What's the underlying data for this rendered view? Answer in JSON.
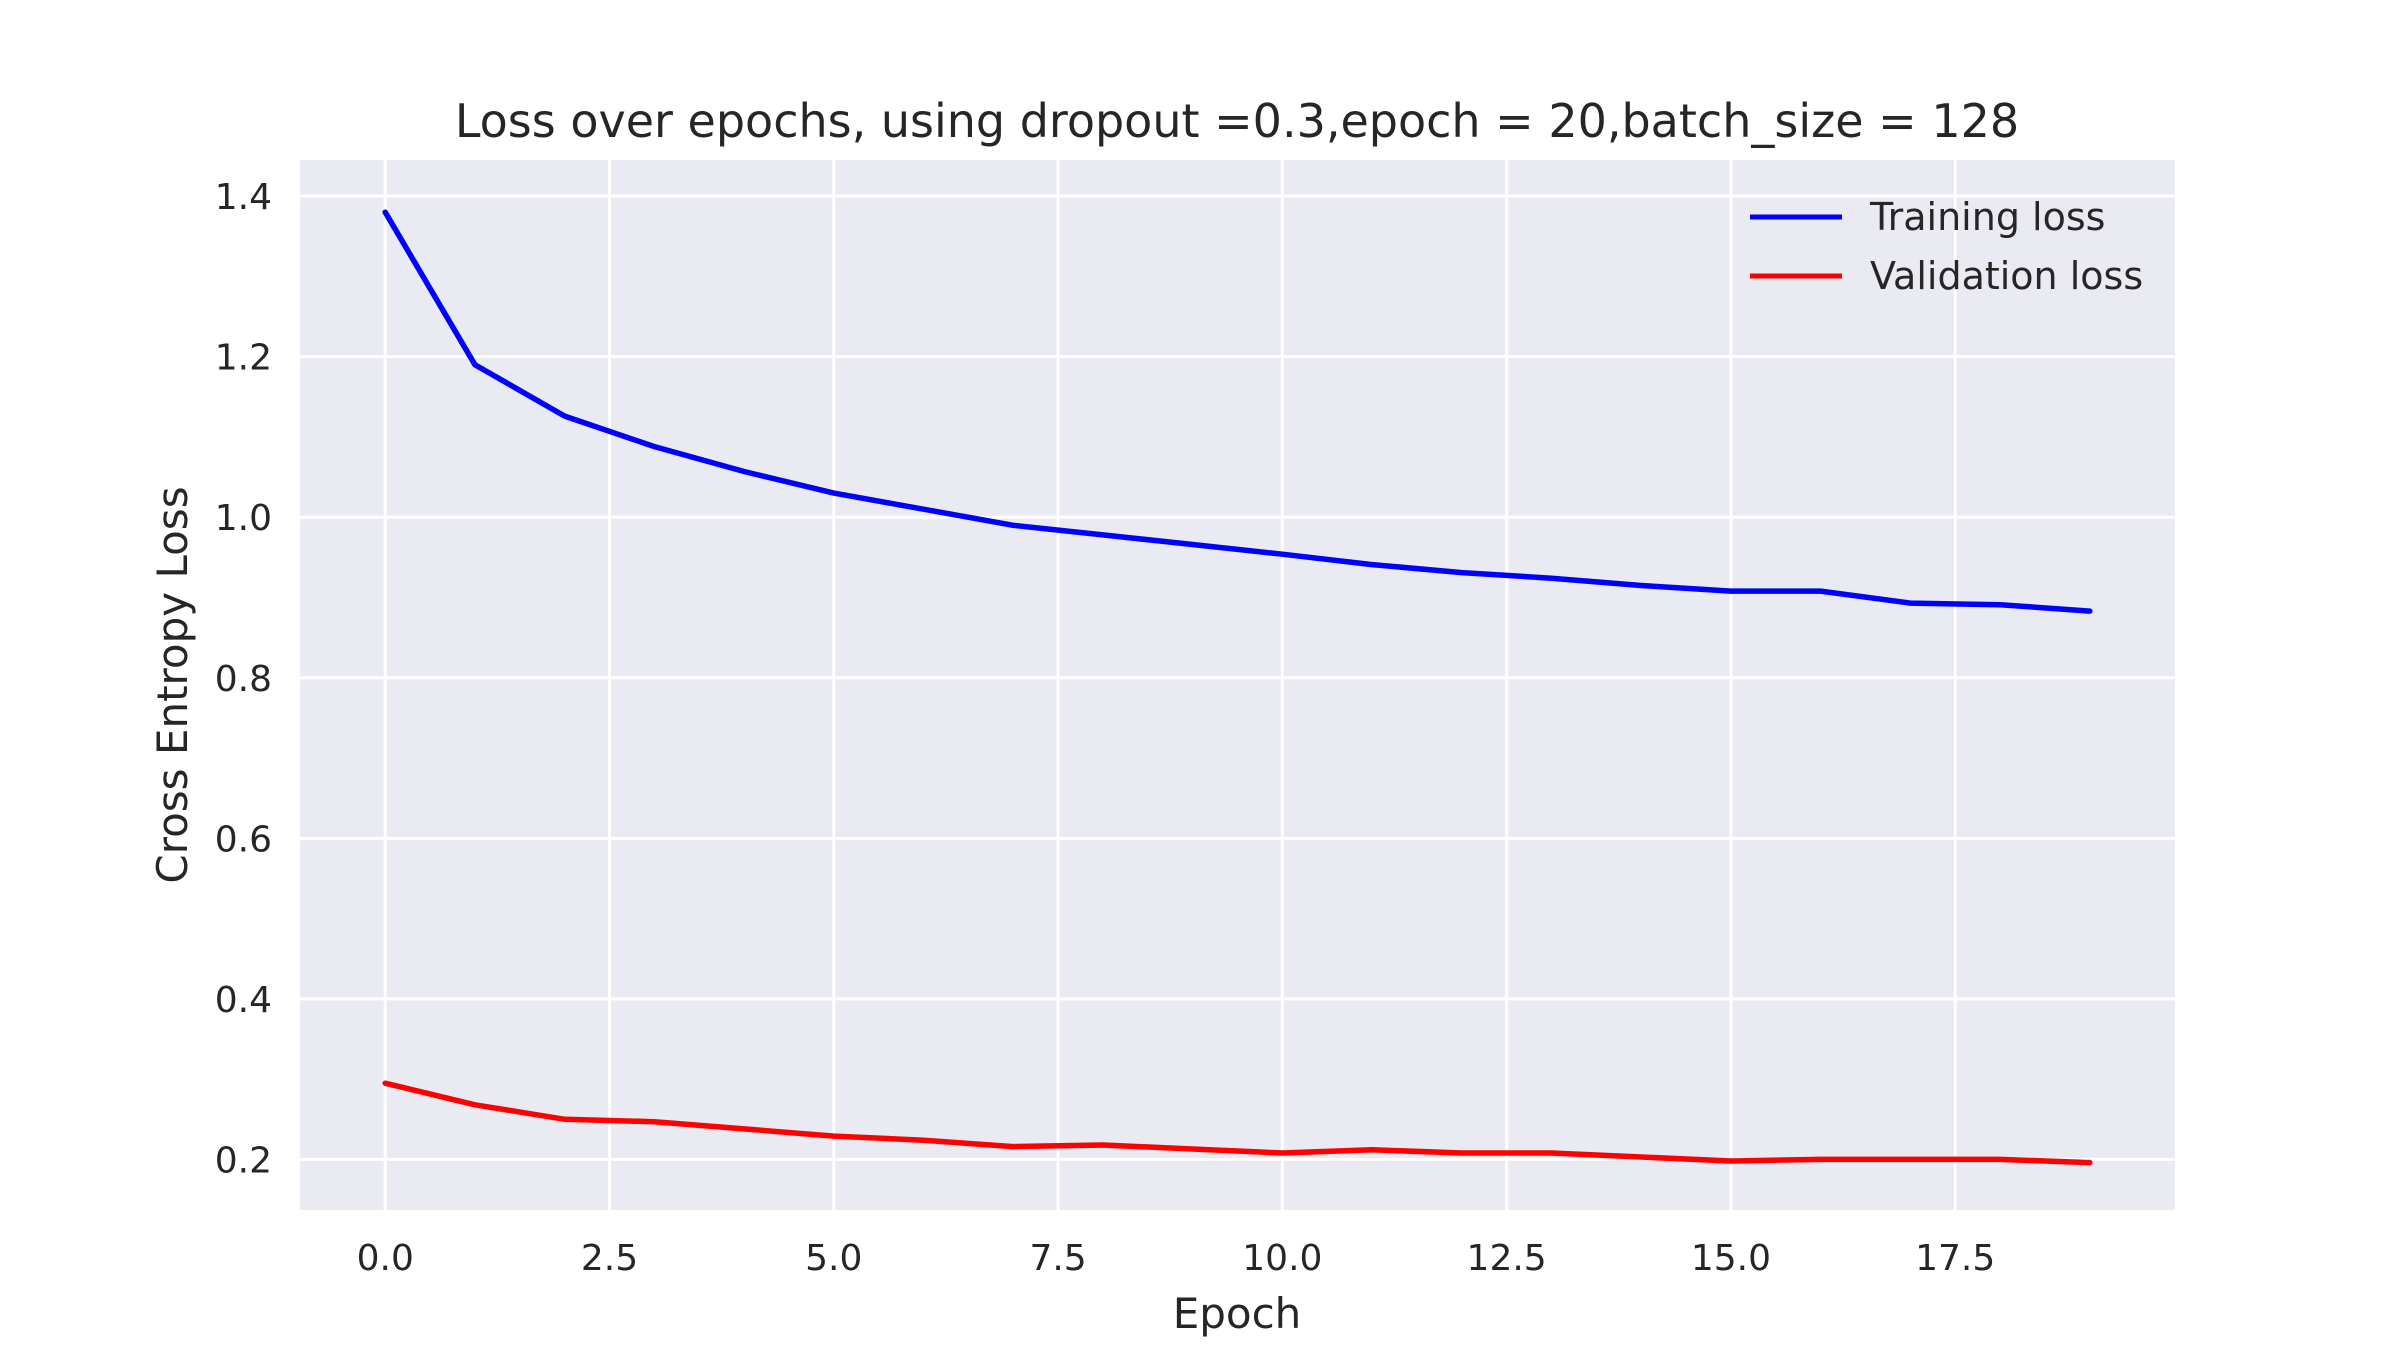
{
  "chart_data": {
    "type": "line",
    "title": "Loss over epochs, using dropout =0.3,epoch = 20,batch_size = 128",
    "xlabel": "Epoch",
    "ylabel": "Cross Entropy Loss",
    "xlim": [
      -0.95,
      19.95
    ],
    "ylim": [
      0.137,
      1.445
    ],
    "xticks": [
      0.0,
      2.5,
      5.0,
      7.5,
      10.0,
      12.5,
      15.0,
      17.5
    ],
    "xtick_labels": [
      "0.0",
      "2.5",
      "5.0",
      "7.5",
      "10.0",
      "12.5",
      "15.0",
      "17.5"
    ],
    "yticks": [
      0.2,
      0.4,
      0.6,
      0.8,
      1.0,
      1.2,
      1.4
    ],
    "ytick_labels": [
      "0.2",
      "0.4",
      "0.6",
      "0.8",
      "1.0",
      "1.2",
      "1.4"
    ],
    "grid": true,
    "legend_position": "top-right",
    "background_color": "#eaeaf2",
    "grid_color": "#ffffff",
    "x": [
      0,
      1,
      2,
      3,
      4,
      5,
      6,
      7,
      8,
      9,
      10,
      11,
      12,
      13,
      14,
      15,
      16,
      17,
      18,
      19
    ],
    "series": [
      {
        "name": "Training loss",
        "color": "#0000ff",
        "values": [
          1.38,
          1.19,
          1.126,
          1.088,
          1.057,
          1.03,
          1.01,
          0.99,
          0.978,
          0.966,
          0.954,
          0.941,
          0.931,
          0.924,
          0.915,
          0.908,
          0.908,
          0.893,
          0.891,
          0.883
        ]
      },
      {
        "name": "Validation loss",
        "color": "#ff0000",
        "values": [
          0.295,
          0.268,
          0.25,
          0.247,
          0.238,
          0.229,
          0.224,
          0.216,
          0.218,
          0.213,
          0.208,
          0.212,
          0.208,
          0.208,
          0.203,
          0.198,
          0.2,
          0.2,
          0.2,
          0.196
        ]
      }
    ]
  }
}
